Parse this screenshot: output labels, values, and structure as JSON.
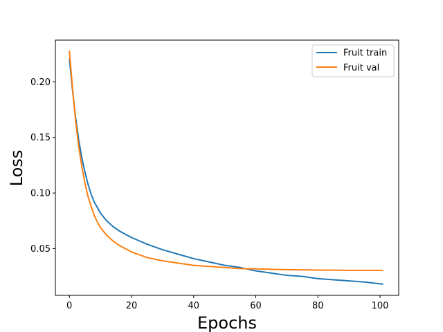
{
  "chart_data": {
    "type": "line",
    "title": "",
    "xlabel": "Epochs",
    "ylabel": "Loss",
    "xlim": [
      -4.5,
      106
    ],
    "ylim": [
      0.008,
      0.2375
    ],
    "x_ticks": [
      0,
      20,
      40,
      60,
      80,
      100
    ],
    "y_ticks": [
      0.05,
      0.1,
      0.15,
      0.2
    ],
    "x_tick_labels": [
      "0",
      "20",
      "40",
      "60",
      "80",
      "100"
    ],
    "y_tick_labels": [
      "0.05",
      "0.10",
      "0.15",
      "0.20"
    ],
    "grid": false,
    "legend_position": "top-right",
    "x": [
      0,
      1,
      2,
      3,
      4,
      5,
      6,
      7,
      8,
      9,
      10,
      12,
      14,
      16,
      18,
      20,
      25,
      30,
      35,
      40,
      45,
      50,
      55,
      60,
      65,
      70,
      75,
      80,
      85,
      90,
      95,
      101
    ],
    "series": [
      {
        "name": "Fruit train",
        "color": "#1f77b4",
        "values": [
          0.221,
          0.193,
          0.168,
          0.148,
          0.132,
          0.119,
          0.108,
          0.099,
          0.092,
          0.087,
          0.082,
          0.075,
          0.07,
          0.066,
          0.063,
          0.06,
          0.054,
          0.049,
          0.045,
          0.041,
          0.038,
          0.035,
          0.033,
          0.03,
          0.028,
          0.026,
          0.025,
          0.023,
          0.022,
          0.021,
          0.02,
          0.018
        ]
      },
      {
        "name": "Fruit val",
        "color": "#ff7f0e",
        "values": [
          0.228,
          0.195,
          0.165,
          0.142,
          0.124,
          0.109,
          0.097,
          0.088,
          0.08,
          0.074,
          0.069,
          0.062,
          0.057,
          0.053,
          0.05,
          0.047,
          0.042,
          0.039,
          0.037,
          0.035,
          0.034,
          0.033,
          0.032,
          0.0318,
          0.0314,
          0.0311,
          0.0309,
          0.0307,
          0.0306,
          0.0305,
          0.0305,
          0.0305
        ]
      }
    ]
  }
}
